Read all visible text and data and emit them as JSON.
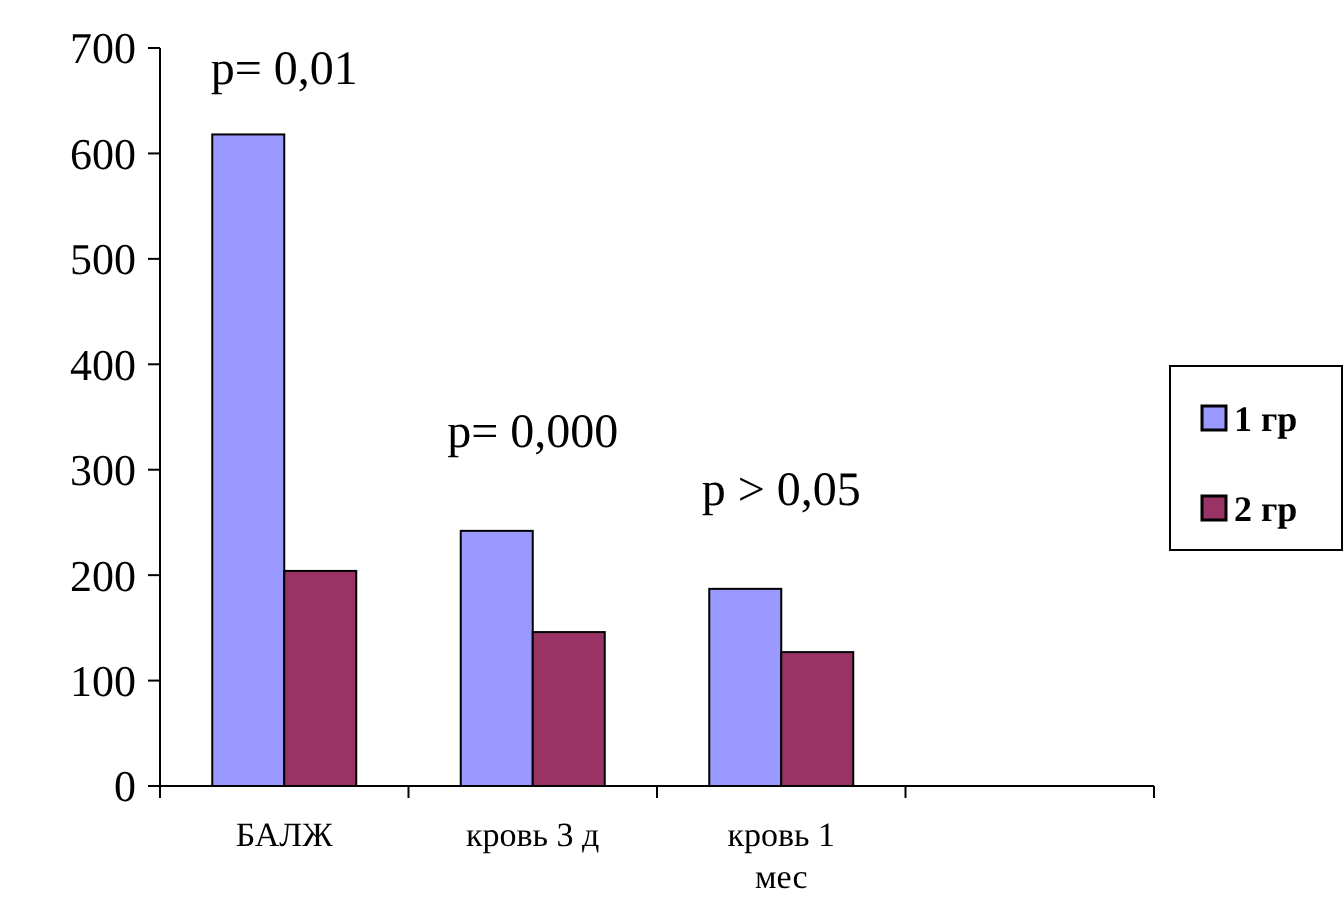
{
  "chart_data": {
    "type": "bar",
    "categories": [
      "БАЛЖ",
      "кровь 3 д",
      "кровь 1 мес",
      null
    ],
    "series": [
      {
        "name": "1 гр",
        "color": "#9999ff",
        "values": [
          618,
          242,
          187,
          null
        ]
      },
      {
        "name": "2 гр",
        "color": "#993366",
        "values": [
          204,
          146,
          127,
          null
        ]
      }
    ],
    "ylim": [
      0,
      700
    ],
    "yticks": [
      0,
      100,
      200,
      300,
      400,
      500,
      600,
      700
    ],
    "legend": "right",
    "annotations": [
      "p= 0,01",
      "p= 0,000",
      "p > 0,05"
    ]
  }
}
